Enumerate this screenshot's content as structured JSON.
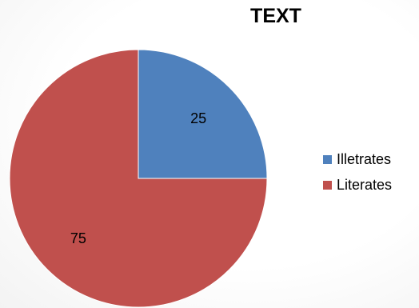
{
  "chart_data": {
    "type": "pie",
    "title": "TEXT",
    "categories": [
      "Illetrates",
      "Literates"
    ],
    "values": [
      25,
      75
    ],
    "data_labels": [
      "25",
      "75"
    ],
    "colors": [
      "#4f81bd",
      "#c0504d"
    ],
    "start_angle": "12 o'clock",
    "direction": "clockwise",
    "legend_position": "right"
  }
}
